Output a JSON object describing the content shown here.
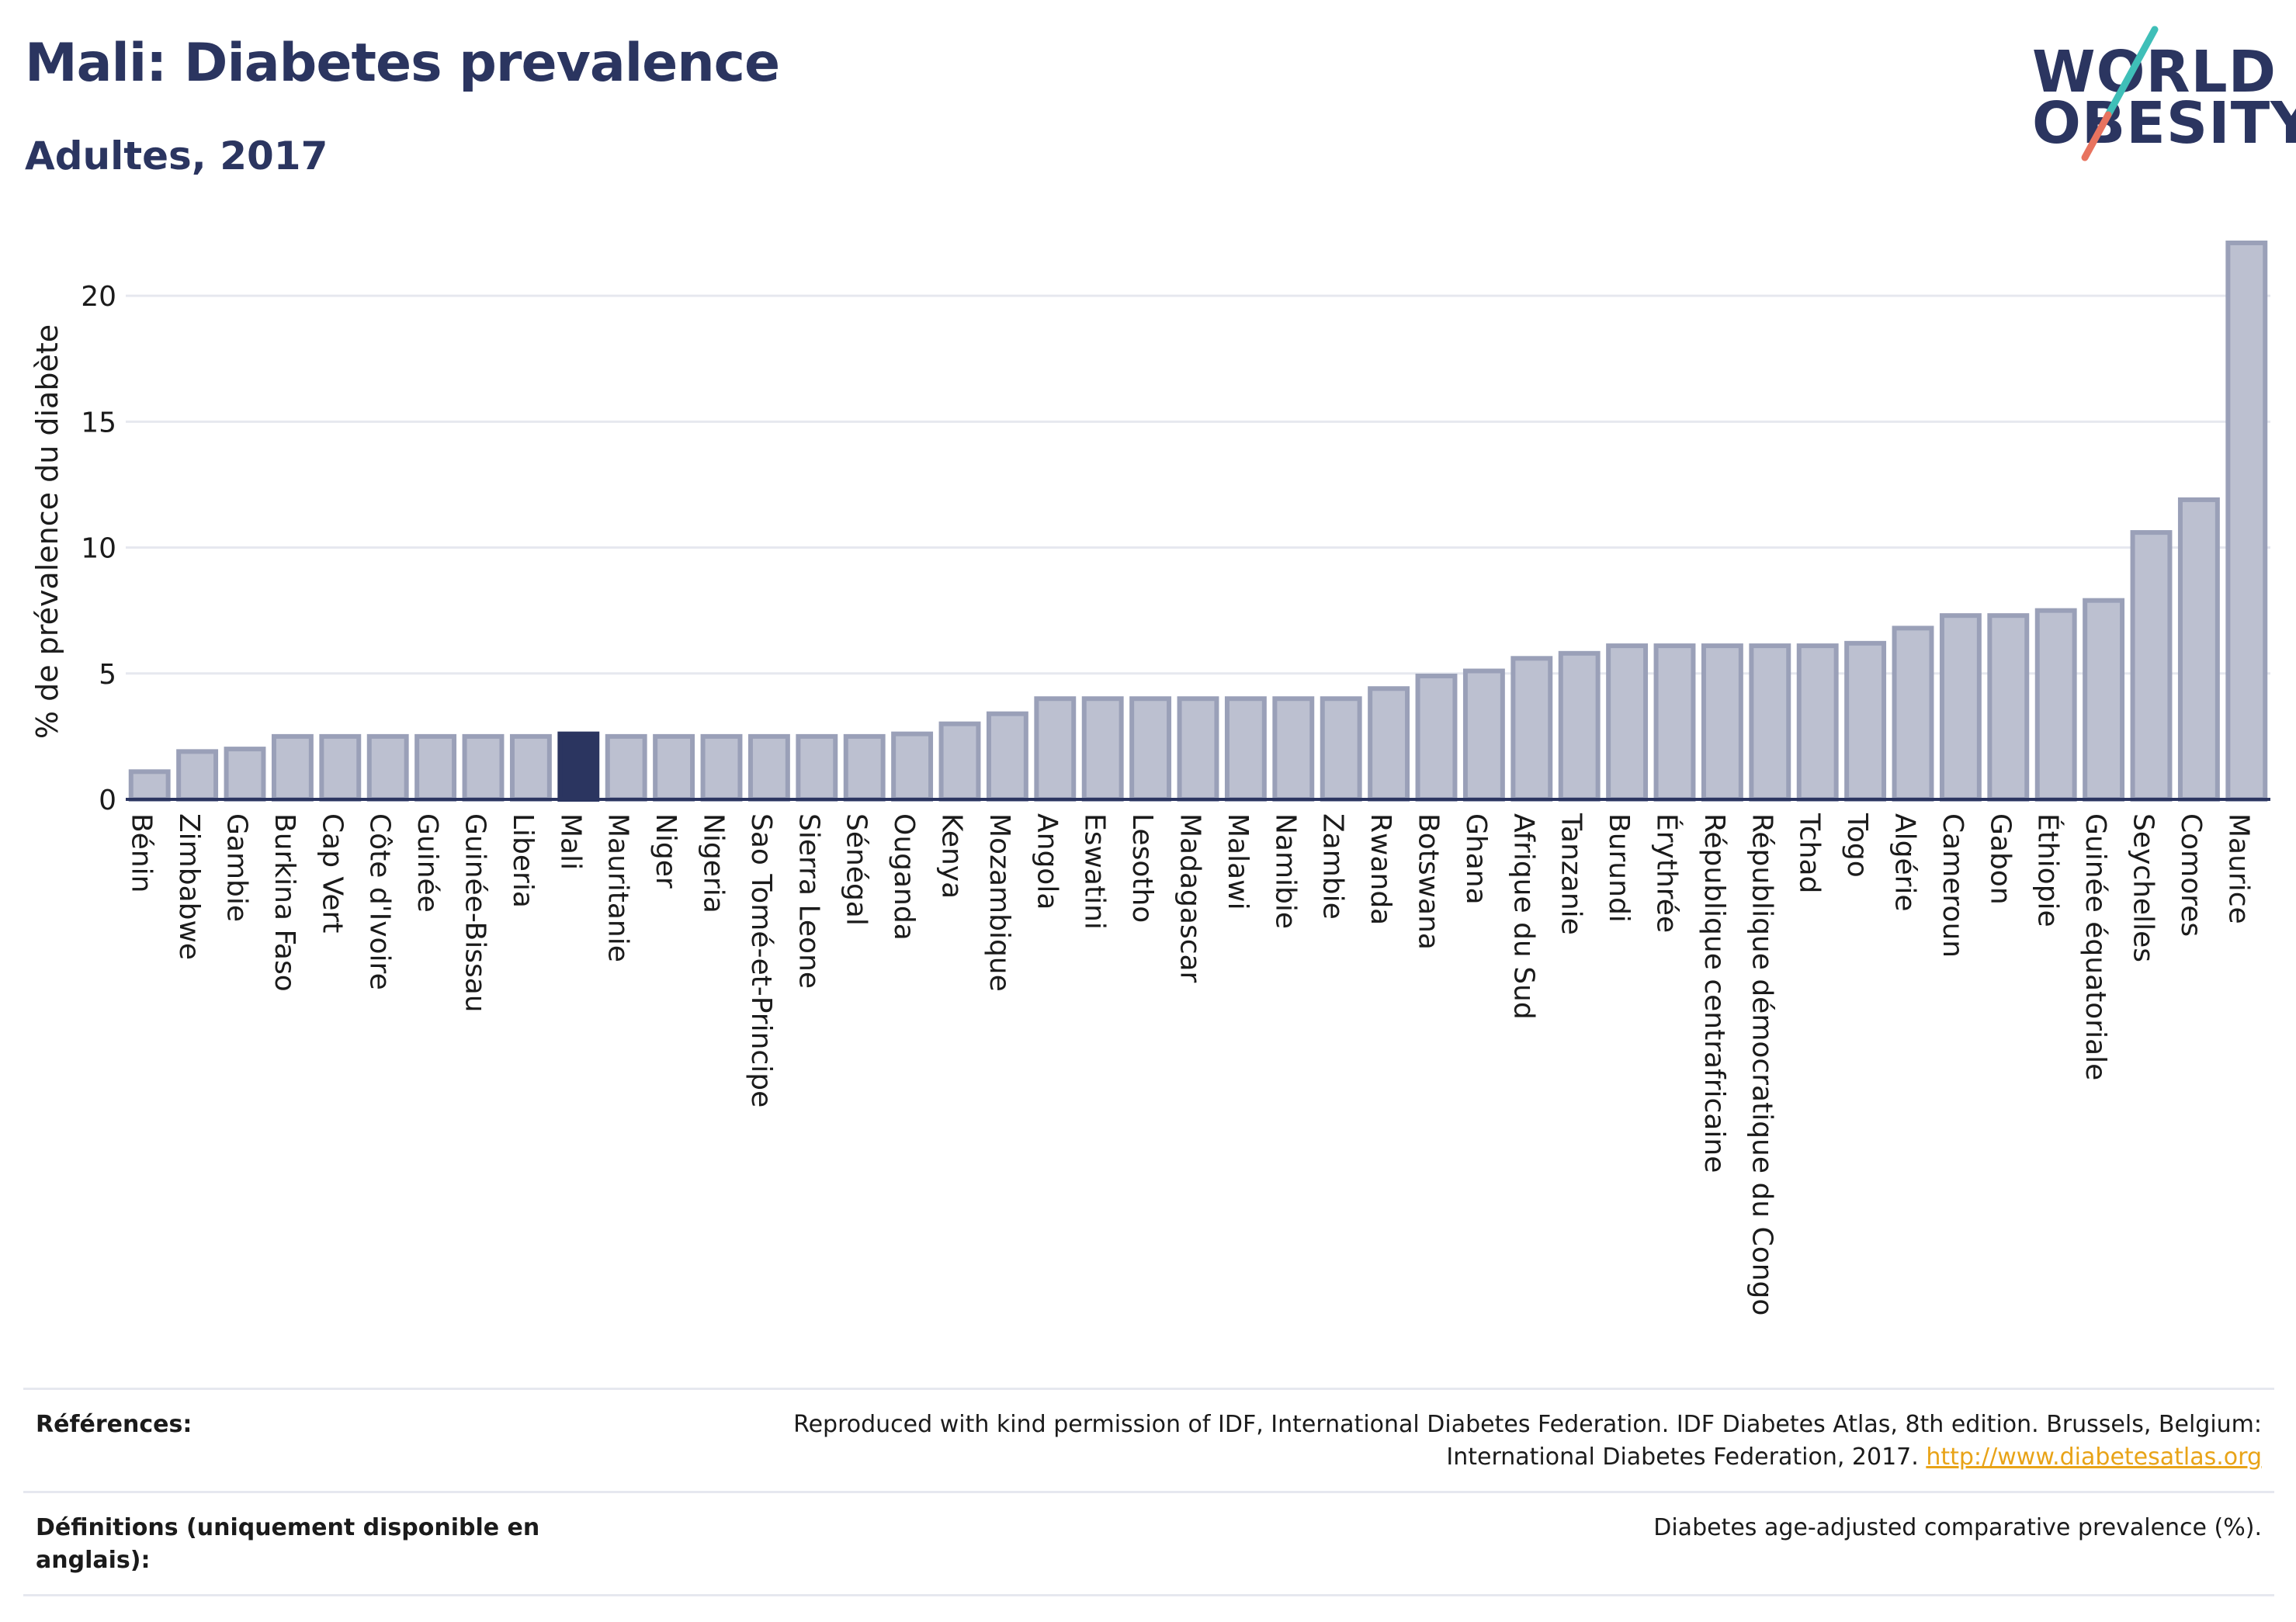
{
  "header": {
    "title": "Mali: Diabetes prevalence",
    "subtitle": "Adultes, 2017",
    "logo_line1": "WORLD",
    "logo_line2": "OBESITY"
  },
  "colors": {
    "bar_default": "#bcc0d0",
    "bar_default_stroke": "#9aa0b8",
    "bar_highlight": "#2b3560",
    "text": "#1b1b1b",
    "title": "#2b3560",
    "link": "#e8a317",
    "logo_teal": "#3fbfb8",
    "logo_coral": "#e8735f"
  },
  "chart_data": {
    "type": "bar",
    "title": "Mali: Diabetes prevalence",
    "subtitle": "Adultes, 2017",
    "ylabel": "% de prévalence du diabète",
    "xlabel": "",
    "ylim": [
      0,
      22.5
    ],
    "yticks": [
      0,
      5,
      10,
      15,
      20
    ],
    "grid": true,
    "highlight": "Mali",
    "categories": [
      "Bénin",
      "Zimbabwe",
      "Gambie",
      "Burkina Faso",
      "Cap Vert",
      "Côte d'Ivoire",
      "Guinée",
      "Guinée-Bissau",
      "Liberia",
      "Mali",
      "Mauritanie",
      "Niger",
      "Nigeria",
      "Sao Tomé-et-Principe",
      "Sierra Leone",
      "Sénégal",
      "Ouganda",
      "Kenya",
      "Mozambique",
      "Angola",
      "Eswatini",
      "Lesotho",
      "Madagascar",
      "Malawi",
      "Namibie",
      "Zambie",
      "Rwanda",
      "Botswana",
      "Ghana",
      "Afrique du Sud",
      "Tanzanie",
      "Burundi",
      "Érythrée",
      "République centrafricaine",
      "République démocratique du Congo",
      "Tchad",
      "Togo",
      "Algérie",
      "Cameroun",
      "Gabon",
      "Éthiopie",
      "Guinée équatoriale",
      "Seychelles",
      "Comores",
      "Maurice"
    ],
    "values": [
      1.1,
      1.9,
      2.0,
      2.5,
      2.5,
      2.5,
      2.5,
      2.5,
      2.5,
      2.6,
      2.5,
      2.5,
      2.5,
      2.5,
      2.5,
      2.5,
      2.6,
      3.0,
      3.4,
      4.0,
      4.0,
      4.0,
      4.0,
      4.0,
      4.0,
      4.0,
      4.4,
      4.9,
      5.1,
      5.6,
      5.8,
      6.1,
      6.1,
      6.1,
      6.1,
      6.1,
      6.2,
      6.8,
      7.3,
      7.3,
      7.5,
      7.9,
      10.6,
      11.9,
      22.1
    ]
  },
  "references": {
    "refs_label": "Références:",
    "refs_text": "Reproduced with kind permission of IDF, International Diabetes Federation. IDF Diabetes Atlas, 8th edition. Brussels, Belgium: International Diabetes Federation, 2017.",
    "refs_link": "http://www.diabetesatlas.org",
    "defs_label": "Définitions (uniquement disponible en anglais):",
    "defs_text": "Diabetes age-adjusted comparative prevalence (%)."
  }
}
